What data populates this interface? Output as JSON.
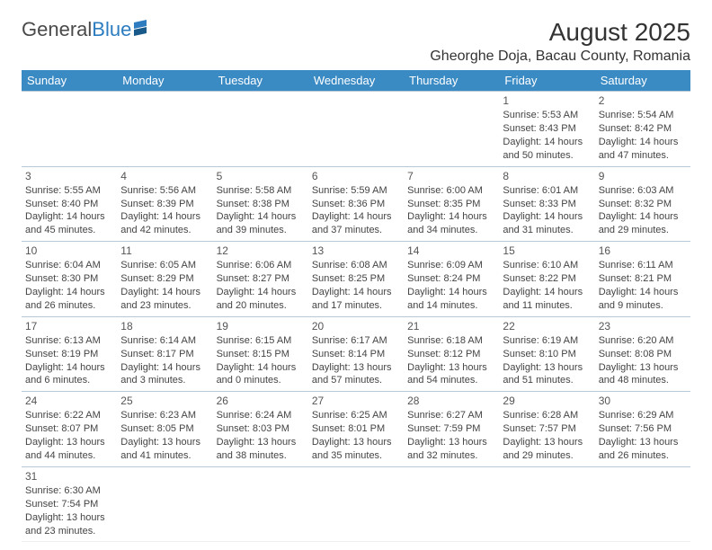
{
  "logo": {
    "text1": "General",
    "text2": "Blue"
  },
  "title": "August 2025",
  "location": "Gheorghe Doja, Bacau County, Romania",
  "colors": {
    "header_bg": "#3a8ac4",
    "header_text": "#ffffff",
    "border": "#b8c8d6",
    "text": "#444444",
    "logo_gray": "#4a4a4a",
    "logo_blue": "#2d7cc0"
  },
  "weekdays": [
    "Sunday",
    "Monday",
    "Tuesday",
    "Wednesday",
    "Thursday",
    "Friday",
    "Saturday"
  ],
  "weeks": [
    [
      null,
      null,
      null,
      null,
      null,
      {
        "day": "1",
        "sunrise": "Sunrise: 5:53 AM",
        "sunset": "Sunset: 8:43 PM",
        "dl1": "Daylight: 14 hours",
        "dl2": "and 50 minutes."
      },
      {
        "day": "2",
        "sunrise": "Sunrise: 5:54 AM",
        "sunset": "Sunset: 8:42 PM",
        "dl1": "Daylight: 14 hours",
        "dl2": "and 47 minutes."
      }
    ],
    [
      {
        "day": "3",
        "sunrise": "Sunrise: 5:55 AM",
        "sunset": "Sunset: 8:40 PM",
        "dl1": "Daylight: 14 hours",
        "dl2": "and 45 minutes."
      },
      {
        "day": "4",
        "sunrise": "Sunrise: 5:56 AM",
        "sunset": "Sunset: 8:39 PM",
        "dl1": "Daylight: 14 hours",
        "dl2": "and 42 minutes."
      },
      {
        "day": "5",
        "sunrise": "Sunrise: 5:58 AM",
        "sunset": "Sunset: 8:38 PM",
        "dl1": "Daylight: 14 hours",
        "dl2": "and 39 minutes."
      },
      {
        "day": "6",
        "sunrise": "Sunrise: 5:59 AM",
        "sunset": "Sunset: 8:36 PM",
        "dl1": "Daylight: 14 hours",
        "dl2": "and 37 minutes."
      },
      {
        "day": "7",
        "sunrise": "Sunrise: 6:00 AM",
        "sunset": "Sunset: 8:35 PM",
        "dl1": "Daylight: 14 hours",
        "dl2": "and 34 minutes."
      },
      {
        "day": "8",
        "sunrise": "Sunrise: 6:01 AM",
        "sunset": "Sunset: 8:33 PM",
        "dl1": "Daylight: 14 hours",
        "dl2": "and 31 minutes."
      },
      {
        "day": "9",
        "sunrise": "Sunrise: 6:03 AM",
        "sunset": "Sunset: 8:32 PM",
        "dl1": "Daylight: 14 hours",
        "dl2": "and 29 minutes."
      }
    ],
    [
      {
        "day": "10",
        "sunrise": "Sunrise: 6:04 AM",
        "sunset": "Sunset: 8:30 PM",
        "dl1": "Daylight: 14 hours",
        "dl2": "and 26 minutes."
      },
      {
        "day": "11",
        "sunrise": "Sunrise: 6:05 AM",
        "sunset": "Sunset: 8:29 PM",
        "dl1": "Daylight: 14 hours",
        "dl2": "and 23 minutes."
      },
      {
        "day": "12",
        "sunrise": "Sunrise: 6:06 AM",
        "sunset": "Sunset: 8:27 PM",
        "dl1": "Daylight: 14 hours",
        "dl2": "and 20 minutes."
      },
      {
        "day": "13",
        "sunrise": "Sunrise: 6:08 AM",
        "sunset": "Sunset: 8:25 PM",
        "dl1": "Daylight: 14 hours",
        "dl2": "and 17 minutes."
      },
      {
        "day": "14",
        "sunrise": "Sunrise: 6:09 AM",
        "sunset": "Sunset: 8:24 PM",
        "dl1": "Daylight: 14 hours",
        "dl2": "and 14 minutes."
      },
      {
        "day": "15",
        "sunrise": "Sunrise: 6:10 AM",
        "sunset": "Sunset: 8:22 PM",
        "dl1": "Daylight: 14 hours",
        "dl2": "and 11 minutes."
      },
      {
        "day": "16",
        "sunrise": "Sunrise: 6:11 AM",
        "sunset": "Sunset: 8:21 PM",
        "dl1": "Daylight: 14 hours",
        "dl2": "and 9 minutes."
      }
    ],
    [
      {
        "day": "17",
        "sunrise": "Sunrise: 6:13 AM",
        "sunset": "Sunset: 8:19 PM",
        "dl1": "Daylight: 14 hours",
        "dl2": "and 6 minutes."
      },
      {
        "day": "18",
        "sunrise": "Sunrise: 6:14 AM",
        "sunset": "Sunset: 8:17 PM",
        "dl1": "Daylight: 14 hours",
        "dl2": "and 3 minutes."
      },
      {
        "day": "19",
        "sunrise": "Sunrise: 6:15 AM",
        "sunset": "Sunset: 8:15 PM",
        "dl1": "Daylight: 14 hours",
        "dl2": "and 0 minutes."
      },
      {
        "day": "20",
        "sunrise": "Sunrise: 6:17 AM",
        "sunset": "Sunset: 8:14 PM",
        "dl1": "Daylight: 13 hours",
        "dl2": "and 57 minutes."
      },
      {
        "day": "21",
        "sunrise": "Sunrise: 6:18 AM",
        "sunset": "Sunset: 8:12 PM",
        "dl1": "Daylight: 13 hours",
        "dl2": "and 54 minutes."
      },
      {
        "day": "22",
        "sunrise": "Sunrise: 6:19 AM",
        "sunset": "Sunset: 8:10 PM",
        "dl1": "Daylight: 13 hours",
        "dl2": "and 51 minutes."
      },
      {
        "day": "23",
        "sunrise": "Sunrise: 6:20 AM",
        "sunset": "Sunset: 8:08 PM",
        "dl1": "Daylight: 13 hours",
        "dl2": "and 48 minutes."
      }
    ],
    [
      {
        "day": "24",
        "sunrise": "Sunrise: 6:22 AM",
        "sunset": "Sunset: 8:07 PM",
        "dl1": "Daylight: 13 hours",
        "dl2": "and 44 minutes."
      },
      {
        "day": "25",
        "sunrise": "Sunrise: 6:23 AM",
        "sunset": "Sunset: 8:05 PM",
        "dl1": "Daylight: 13 hours",
        "dl2": "and 41 minutes."
      },
      {
        "day": "26",
        "sunrise": "Sunrise: 6:24 AM",
        "sunset": "Sunset: 8:03 PM",
        "dl1": "Daylight: 13 hours",
        "dl2": "and 38 minutes."
      },
      {
        "day": "27",
        "sunrise": "Sunrise: 6:25 AM",
        "sunset": "Sunset: 8:01 PM",
        "dl1": "Daylight: 13 hours",
        "dl2": "and 35 minutes."
      },
      {
        "day": "28",
        "sunrise": "Sunrise: 6:27 AM",
        "sunset": "Sunset: 7:59 PM",
        "dl1": "Daylight: 13 hours",
        "dl2": "and 32 minutes."
      },
      {
        "day": "29",
        "sunrise": "Sunrise: 6:28 AM",
        "sunset": "Sunset: 7:57 PM",
        "dl1": "Daylight: 13 hours",
        "dl2": "and 29 minutes."
      },
      {
        "day": "30",
        "sunrise": "Sunrise: 6:29 AM",
        "sunset": "Sunset: 7:56 PM",
        "dl1": "Daylight: 13 hours",
        "dl2": "and 26 minutes."
      }
    ],
    [
      {
        "day": "31",
        "sunrise": "Sunrise: 6:30 AM",
        "sunset": "Sunset: 7:54 PM",
        "dl1": "Daylight: 13 hours",
        "dl2": "and 23 minutes."
      },
      null,
      null,
      null,
      null,
      null,
      null
    ]
  ]
}
